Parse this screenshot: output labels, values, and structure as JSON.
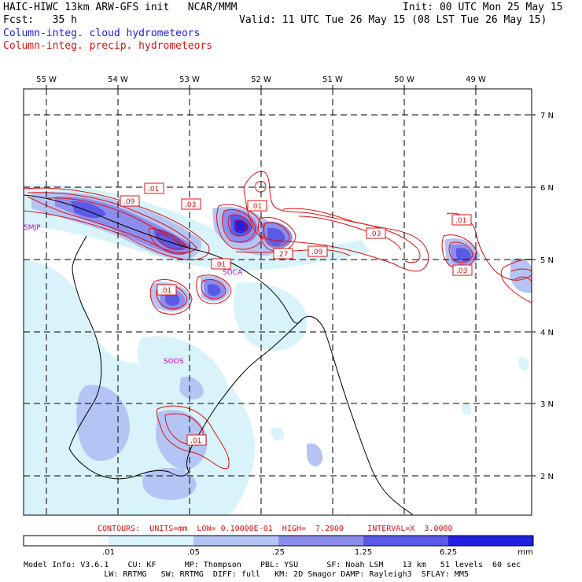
{
  "header": {
    "model_title": "HAIC-HIWC 13km ARW-GFS init   NCAR/MMM",
    "init": "Init: 00 UTC Mon 25 May 15",
    "fcst": "Fcst:   35 h",
    "valid": "Valid: 11 UTC Tue 26 May 15 (08 LST Tue 26 May 15)",
    "field_cloud": "Column-integ. cloud hydrometeors",
    "field_precip": "Column-integ. precip. hydrometeors"
  },
  "axes": {
    "lon_labels": [
      "55 W",
      "54 W",
      "53 W",
      "52 W",
      "51 W",
      "50 W",
      "49 W"
    ],
    "lat_labels": [
      "7 N",
      "6 N",
      "5 N",
      "4 N",
      "3 N",
      "2 N"
    ]
  },
  "stations": [
    "SMJP",
    "SOCA",
    "SOOS"
  ],
  "contour_labels": [
    ".01",
    ".09",
    ".03",
    ".01",
    ".01",
    ".03",
    ".27",
    ".09",
    ".01",
    ".01",
    ".03",
    ".01"
  ],
  "contours_info": "CONTOURS:  UNITS=mm  LOW= 0.10000E-01  HIGH=  7.2900     INTERVAL=X  3.0000",
  "colorbar": {
    "ticks": [
      ".01",
      ".05",
      ".25",
      "1.25",
      "6.25"
    ],
    "units": "mm",
    "colors": [
      "#ffffff",
      "#d8f4fa",
      "#b4c4f4",
      "#8c8cec",
      "#5a5ae6",
      "#2020e0"
    ]
  },
  "model_info": {
    "line1": "Model Info: V3.6.1    CU: KF      MP: Thompson    PBL: YSU      SF: Noah LSM    13 km   51 levels  60 sec",
    "line2": "                 LW: RRTMG   SW: RRTMG  DIFF: full   KM: 2D Smagor DAMP: Rayleigh3  SFLAY: MM5"
  },
  "colors": {
    "cloud": "#1a1ae6",
    "precip": "#e01010",
    "station": "#c800c8"
  }
}
